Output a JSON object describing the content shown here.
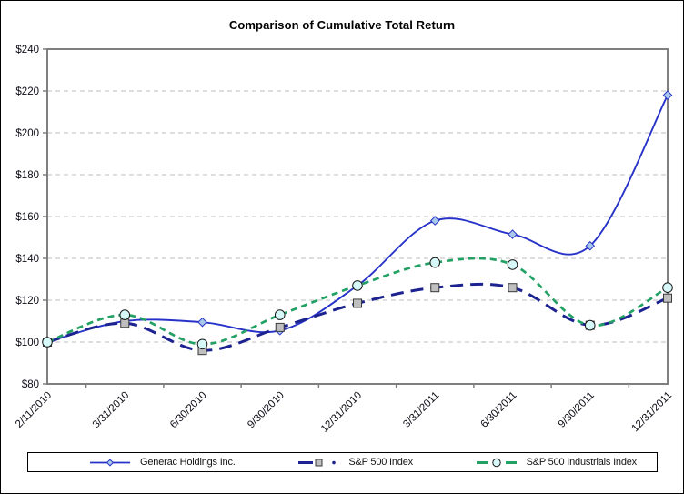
{
  "chart_data": {
    "type": "line",
    "title": "Comparison of Cumulative Total Return",
    "categories": [
      "2/11/2010",
      "3/31/2010",
      "6/30/2010",
      "9/30/2010",
      "12/31/2010",
      "3/31/2011",
      "6/30/2011",
      "9/30/2011",
      "12/31/2011"
    ],
    "series": [
      {
        "name": "Generac Holdings Inc.",
        "values": [
          100,
          110,
          109.5,
          105.5,
          127,
          158,
          151.5,
          146,
          218
        ],
        "color": "#2733C8",
        "line_style": "solid",
        "line_width": 1.9,
        "marker": "diamond",
        "marker_fill": "#A9C9EA",
        "marker_stroke": "#2733C8"
      },
      {
        "name": "S&P 500 Index",
        "values": [
          100,
          109,
          96,
          107,
          118.5,
          126,
          126,
          108,
          121
        ],
        "color": "#1C2391",
        "line_style": "long-dash",
        "line_width": 3,
        "marker": "square",
        "marker_fill": "#BFBFBF",
        "marker_stroke": "#3A3A3A"
      },
      {
        "name": "S&P 500 Industrials Index",
        "values": [
          100,
          113,
          99,
          113,
          127,
          138,
          137,
          108,
          126
        ],
        "color": "#23A164",
        "line_style": "dash",
        "line_width": 2.7,
        "marker": "circle",
        "marker_fill": "#D6F8F8",
        "marker_stroke": "#1A1A1A"
      }
    ],
    "y_axis": {
      "min": 80,
      "max": 240,
      "step": 20,
      "prefix": "$",
      "tick_labels": [
        "$80",
        "$100",
        "$120",
        "$140",
        "$160",
        "$180",
        "$200",
        "$220",
        "$240"
      ]
    },
    "x_axis": {
      "label_rotation": -45
    },
    "grid": {
      "horizontal": true,
      "style": "dashed",
      "color": "#BEBEBE"
    },
    "frame_color": "#7F7F7F",
    "plot_background": "#FFFFFF",
    "smooth": true,
    "legend_position": "bottom"
  }
}
